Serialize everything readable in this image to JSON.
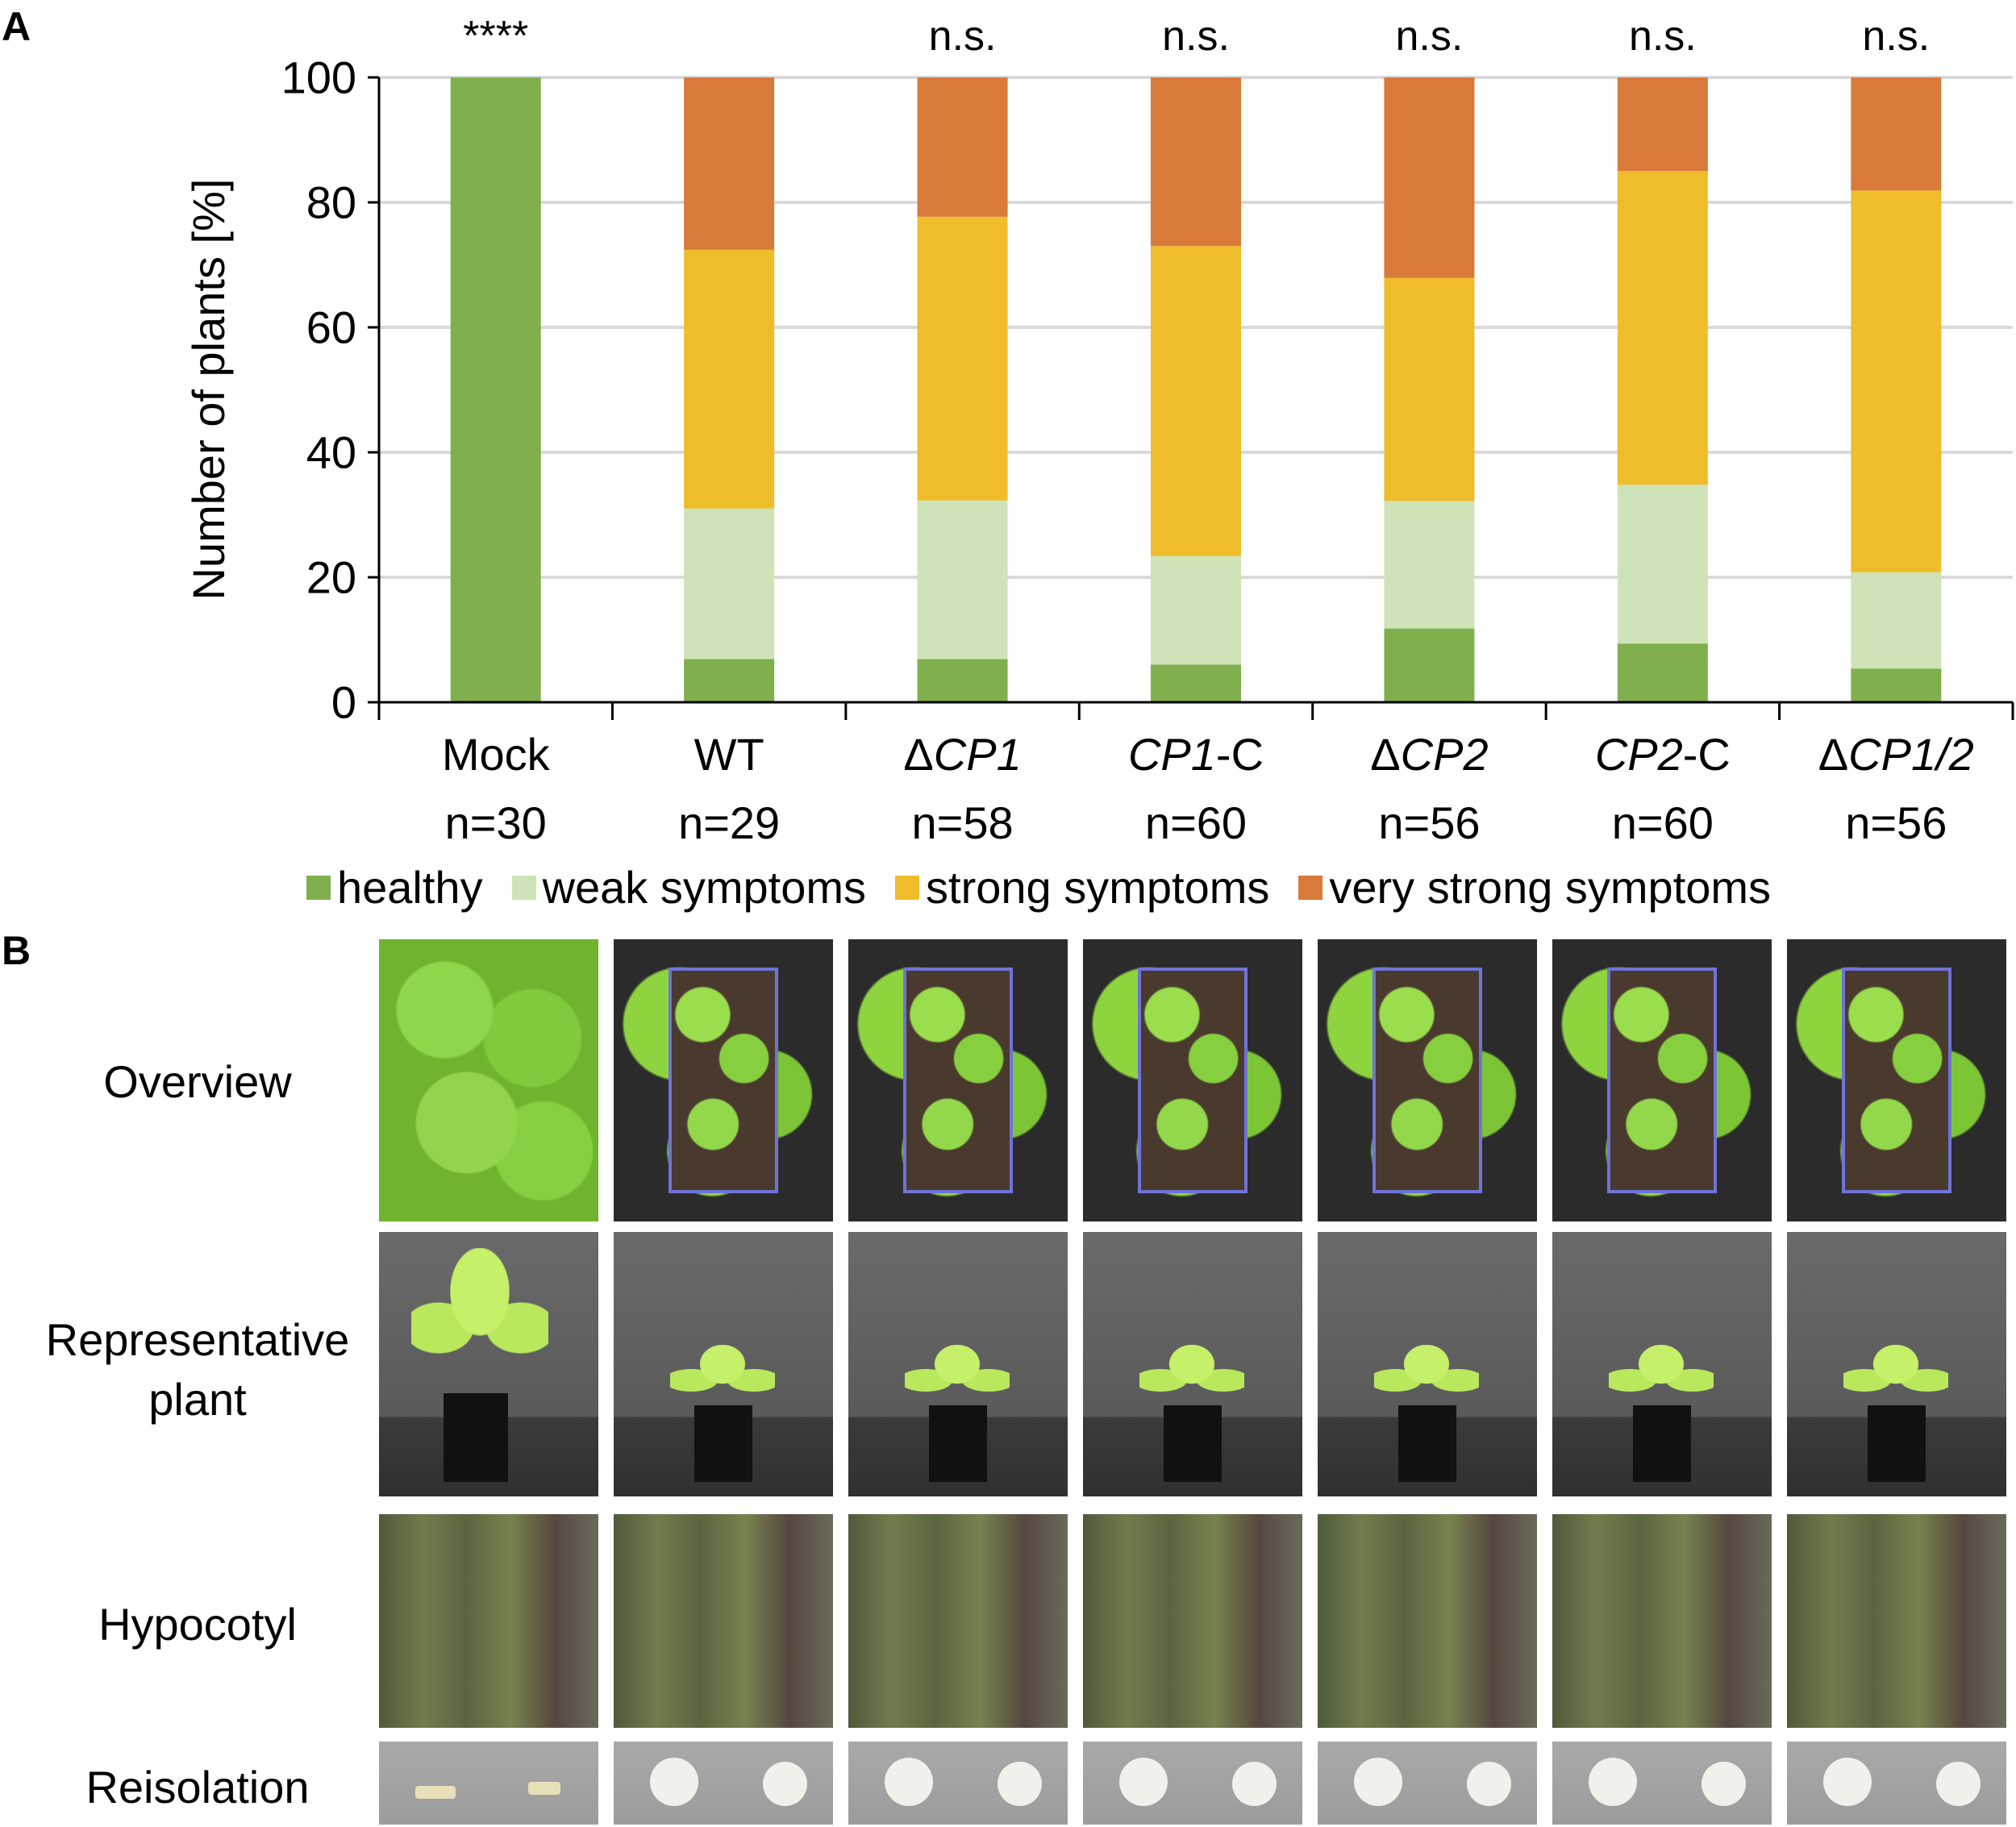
{
  "panel_a_label": "A",
  "panel_b_label": "B",
  "colors": {
    "healthy": "#7fb04d",
    "weak": "#cfe3b8",
    "strong": "#efbd2b",
    "very_strong": "#d87a3a",
    "grid": "#d9d9d9"
  },
  "chart_data": {
    "type": "bar",
    "stacked": true,
    "ylabel": "Number of plants [%]",
    "ylim": [
      0,
      100
    ],
    "yticks": [
      0,
      20,
      40,
      60,
      80,
      100
    ],
    "grid": true,
    "legend_position": "bottom",
    "categories": [
      {
        "parts": [
          {
            "t": "Mock",
            "i": false
          }
        ],
        "n": "n=30",
        "sig": "****"
      },
      {
        "parts": [
          {
            "t": "WT",
            "i": false
          }
        ],
        "n": "n=29",
        "sig": ""
      },
      {
        "parts": [
          {
            "t": "Δ",
            "i": false
          },
          {
            "t": "CP1",
            "i": true
          }
        ],
        "n": "n=58",
        "sig": "n.s."
      },
      {
        "parts": [
          {
            "t": "CP1",
            "i": true
          },
          {
            "t": "-C",
            "i": false
          }
        ],
        "n": "n=60",
        "sig": "n.s."
      },
      {
        "parts": [
          {
            "t": "Δ",
            "i": false
          },
          {
            "t": "CP2",
            "i": true
          }
        ],
        "n": "n=56",
        "sig": "n.s."
      },
      {
        "parts": [
          {
            "t": "CP2",
            "i": true
          },
          {
            "t": "-C",
            "i": false
          }
        ],
        "n": "n=60",
        "sig": "n.s."
      },
      {
        "parts": [
          {
            "t": "Δ",
            "i": false
          },
          {
            "t": "CP1/2",
            "i": true
          }
        ],
        "n": "n=56",
        "sig": "n.s."
      }
    ],
    "series": [
      {
        "name": "healthy",
        "color_key": "healthy",
        "values": [
          100,
          6.9,
          6.9,
          6.0,
          11.8,
          9.4,
          5.4
        ]
      },
      {
        "name": "weak symptoms",
        "color_key": "weak",
        "values": [
          0,
          24.1,
          25.4,
          17.4,
          20.4,
          25.4,
          15.4
        ]
      },
      {
        "name": "strong symptoms",
        "color_key": "strong",
        "values": [
          0,
          41.4,
          45.4,
          49.6,
          35.7,
          50.2,
          61.1
        ]
      },
      {
        "name": "very strong symptoms",
        "color_key": "very_strong",
        "values": [
          0,
          27.6,
          22.3,
          27.0,
          32.1,
          15.0,
          18.1
        ]
      }
    ]
  },
  "legend": [
    {
      "label": "healthy",
      "color_key": "healthy"
    },
    {
      "label": "weak symptoms",
      "color_key": "weak"
    },
    {
      "label": "strong symptoms",
      "color_key": "strong"
    },
    {
      "label": "very strong symptoms",
      "color_key": "very_strong"
    }
  ],
  "panel_b": {
    "rows": [
      {
        "line1": "Overview",
        "line2": ""
      },
      {
        "line1": "Representative",
        "line2": "plant"
      },
      {
        "line1": "Hypocotyl",
        "line2": ""
      },
      {
        "line1": "Reisolation",
        "line2": ""
      }
    ]
  }
}
